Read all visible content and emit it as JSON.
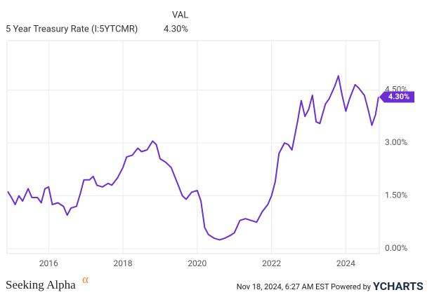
{
  "chart_data": {
    "type": "line",
    "title": "5 Year Treasury Rate (I:5YTCMR)",
    "legend_header": "VAL",
    "current_value": {
      "value": 4.3,
      "label": "4.30%"
    },
    "x": [
      2014.9,
      2015.0,
      2015.1,
      2015.2,
      2015.3,
      2015.45,
      2015.55,
      2015.7,
      2015.8,
      2015.9,
      2016.0,
      2016.1,
      2016.25,
      2016.4,
      2016.5,
      2016.6,
      2016.75,
      2016.85,
      2016.95,
      2017.1,
      2017.2,
      2017.3,
      2017.45,
      2017.6,
      2017.7,
      2017.85,
      2018.0,
      2018.1,
      2018.25,
      2018.4,
      2018.5,
      2018.65,
      2018.8,
      2018.9,
      2019.0,
      2019.15,
      2019.3,
      2019.45,
      2019.6,
      2019.7,
      2019.85,
      2020.0,
      2020.1,
      2020.2,
      2020.3,
      2020.45,
      2020.6,
      2020.75,
      2020.9,
      2021.0,
      2021.15,
      2021.3,
      2021.45,
      2021.6,
      2021.75,
      2021.9,
      2022.0,
      2022.1,
      2022.2,
      2022.35,
      2022.45,
      2022.55,
      2022.7,
      2022.8,
      2022.9,
      2023.0,
      2023.1,
      2023.2,
      2023.3,
      2023.45,
      2023.55,
      2023.7,
      2023.8,
      2023.9,
      2024.0,
      2024.1,
      2024.25,
      2024.35,
      2024.5,
      2024.6,
      2024.7,
      2024.8,
      2024.88
    ],
    "series": [
      {
        "name": "5 Year Treasury Rate (I:5YTCMR)",
        "color": "#6a2ed4",
        "values": [
          1.62,
          1.45,
          1.25,
          1.5,
          1.35,
          1.7,
          1.45,
          1.45,
          1.3,
          1.7,
          1.75,
          1.25,
          1.3,
          1.2,
          0.95,
          1.15,
          1.2,
          1.55,
          1.95,
          1.95,
          2.05,
          1.8,
          1.75,
          1.85,
          1.8,
          2.0,
          2.3,
          2.6,
          2.65,
          2.85,
          2.75,
          2.8,
          3.05,
          2.95,
          2.55,
          2.45,
          2.3,
          1.9,
          1.5,
          1.4,
          1.6,
          1.65,
          1.35,
          0.6,
          0.4,
          0.3,
          0.25,
          0.3,
          0.38,
          0.45,
          0.8,
          0.85,
          0.8,
          0.75,
          1.05,
          1.25,
          1.5,
          1.9,
          2.7,
          3.0,
          2.95,
          2.8,
          3.6,
          4.2,
          3.75,
          3.95,
          4.35,
          3.6,
          3.55,
          4.1,
          4.25,
          4.6,
          4.9,
          4.35,
          3.9,
          4.25,
          4.65,
          4.55,
          4.35,
          3.95,
          3.5,
          3.8,
          4.3
        ]
      }
    ],
    "xlim": [
      2014.88,
      2024.9
    ],
    "xticks": [
      2016,
      2018,
      2020,
      2022,
      2024
    ],
    "ylim": [
      -0.14,
      5.9
    ],
    "yticks": [
      {
        "value": 0,
        "label": "0.00%"
      },
      {
        "value": 1.5,
        "label": "1.50%"
      },
      {
        "value": 3,
        "label": "3.00%"
      },
      {
        "value": 4.5,
        "label": "4.50%"
      }
    ],
    "grid": true
  },
  "footer": {
    "brand": "Seeking Alpha",
    "brand_symbol": "α",
    "timestamp": "Nov 18, 2024, 6:27 AM EST Powered by",
    "provider": "YCHARTS"
  }
}
